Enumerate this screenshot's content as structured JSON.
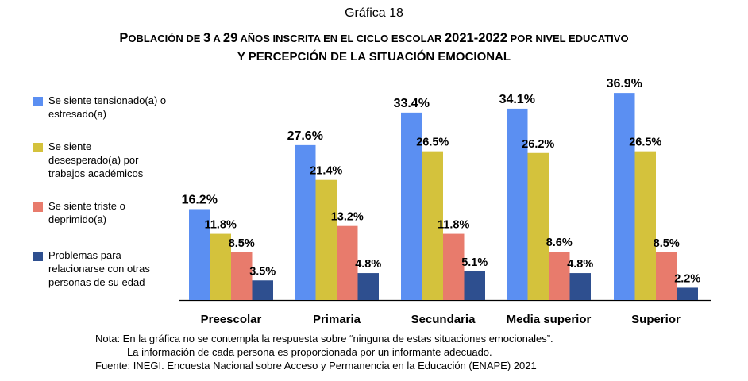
{
  "header": {
    "subtitle": "Gráfica 18",
    "title_line1_parts": [
      {
        "t": "P",
        "c": "big"
      },
      {
        "t": "OBLACIÓN DE ",
        "c": "sm"
      },
      {
        "t": "3",
        "c": "big"
      },
      {
        "t": " A ",
        "c": "sm"
      },
      {
        "t": "29",
        "c": "big"
      },
      {
        "t": " AÑOS INSCRITA EN EL CICLO ESCOLAR ",
        "c": "sm"
      },
      {
        "t": "2021-2022",
        "c": "big"
      },
      {
        "t": " POR NIVEL EDUCATIVO",
        "c": "sm"
      }
    ],
    "title_line2": "Y PERCEPCIÓN DE LA SITUACIÓN EMOCIONAL"
  },
  "chart_data": {
    "type": "bar",
    "title": "Gráfica 18",
    "categories": [
      "Preescolar",
      "Primaria",
      "Secundaria",
      "Media superior",
      "Superior"
    ],
    "series": [
      {
        "name": "Se siente tensionado(a) o estresado(a)",
        "color": "#5b8ff2",
        "values": [
          16.2,
          27.6,
          33.4,
          34.1,
          36.9
        ]
      },
      {
        "name": "Se siente desesperado(a) por trabajos académicos",
        "color": "#d4c23c",
        "values": [
          11.8,
          21.4,
          26.5,
          26.2,
          26.5
        ]
      },
      {
        "name": "Se siente triste o deprimido(a)",
        "color": "#e87b6c",
        "values": [
          8.5,
          13.2,
          11.8,
          8.6,
          8.5
        ]
      },
      {
        "name": "Problemas para relacionarse con otras personas de su edad",
        "color": "#2e4f8f",
        "values": [
          3.5,
          4.8,
          5.1,
          4.8,
          2.2
        ]
      }
    ],
    "value_suffix": "%",
    "ylim": [
      0,
      40
    ],
    "legend_position": "left",
    "grid": false
  },
  "legend": [
    {
      "lines": [
        "Se siente tensionado(a) o",
        "estresado(a)"
      ]
    },
    {
      "lines": [
        "Se siente",
        "desesperado(a) por",
        "trabajos académicos"
      ]
    },
    {
      "lines": [
        "Se siente triste o",
        "deprimido(a)"
      ]
    },
    {
      "lines": [
        "Problemas para",
        "relacionarse con otras",
        "personas de su edad"
      ]
    }
  ],
  "notes": {
    "line1": "Nota: En la gráfica no se contempla la respuesta sobre “ninguna de estas situaciones emocionales”.",
    "line2": "La información de cada persona es proporcionada por un informante adecuado.",
    "line3": "Fuente: INEGI. Encuesta Nacional sobre Acceso y Permanencia en la Educación (ENAPE) 2021"
  }
}
